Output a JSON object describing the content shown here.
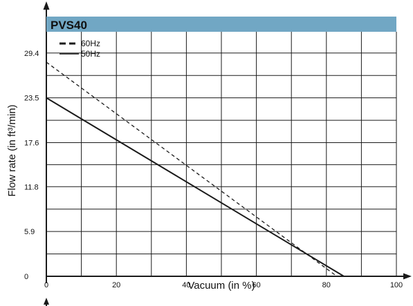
{
  "chart_data": {
    "type": "line",
    "title": "PVS40",
    "xlabel": "Vacuum (in %)",
    "ylabel": "Flow rate (in ft³/min)",
    "xlim": [
      0,
      100
    ],
    "ylim": [
      0,
      29.4
    ],
    "x_ticks": [
      0,
      20,
      40,
      60,
      80,
      100
    ],
    "x_tick_labels": [
      "0",
      "20",
      "40",
      "60",
      "80",
      "100"
    ],
    "y_ticks": [
      0,
      5.9,
      11.8,
      17.6,
      23.5,
      29.4
    ],
    "y_tick_labels": [
      "0",
      "5.9",
      "11.8",
      "17.6",
      "23.5",
      "29.4"
    ],
    "grid": true,
    "legend_position": "top-left",
    "series": [
      {
        "name": "60Hz",
        "style": "dashed",
        "x": [
          0,
          83
        ],
        "y": [
          28.2,
          0
        ]
      },
      {
        "name": "50Hz",
        "style": "solid",
        "x": [
          0,
          85
        ],
        "y": [
          23.5,
          0
        ]
      }
    ],
    "colors": {
      "title_bar": "#71a7c4",
      "line": "#1a1a1a",
      "grid": "#1a1a1a"
    }
  }
}
